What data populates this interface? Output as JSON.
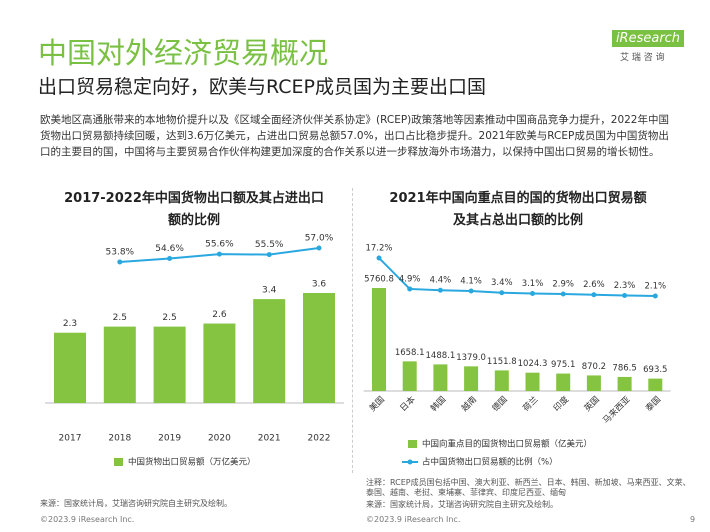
{
  "header": {
    "title": "中国对外经济贸易概况",
    "subtitle": "出口贸易稳定向好，欧美与RCEP成员国为主要出口国",
    "logo": "iResearch",
    "logo_sub": "艾 瑞 咨 询"
  },
  "paragraph": "欧美地区高通胀带来的本地物价提升以及《区域全面经济伙伴关系协定》(RCEP)政策落地等因素推动中国商品竞争力提升，2022年中国货物出口贸易额持续回暖，达到3.6万亿美元，占进出口贸易总额57.0%，出口占比稳步提升。2021年欧美与RCEP成员国为中国货物出口的主要目的国，中国将与主要贸易合作伙伴构建更加深度的合作关系以进一步释放海外市场潜力，以保持中国出口贸易的增长韧性。",
  "chart_data": [
    {
      "type": "bar",
      "title": "2017-2022年中国货物出口额及其占进出口额的比例",
      "categories": [
        "2017",
        "2018",
        "2019",
        "2020",
        "2021",
        "2022"
      ],
      "series": [
        {
          "name": "中国货物出口贸易额（万亿美元）",
          "type": "bar",
          "color": "#84c441",
          "values": [
            2.3,
            2.5,
            2.5,
            2.6,
            3.4,
            3.6
          ]
        },
        {
          "type": "line",
          "color": "#29a8e0",
          "values": [
            null,
            53.8,
            54.6,
            55.6,
            55.5,
            57.0
          ],
          "value_labels": [
            null,
            "53.8%",
            "54.6%",
            "55.6%",
            "55.5%",
            "57.0%"
          ]
        }
      ]
    },
    {
      "type": "bar",
      "title": "2021年中国向重点目的国的货物出口贸易额及其占总出口额的比例",
      "categories": [
        "美国",
        "日本",
        "韩国",
        "越南",
        "德国",
        "荷兰",
        "印度",
        "英国",
        "马来西亚",
        "泰国"
      ],
      "series": [
        {
          "name": "中国向重点目的国货物出口贸易额（亿美元）",
          "type": "bar",
          "color": "#84c441",
          "values": [
            5760.8,
            1658.1,
            1488.1,
            1379.0,
            1151.8,
            1024.3,
            975.1,
            870.2,
            786.5,
            693.5
          ],
          "value_labels": [
            "5760.8",
            "1658.1",
            "1488.1",
            "1379.0",
            "1151.8",
            "1024.3",
            "975.1",
            "870.2",
            "786.5",
            "693.5"
          ]
        },
        {
          "name": "占中国货物出口贸易额的比例（%）",
          "type": "line",
          "color": "#29a8e0",
          "values": [
            17.2,
            4.9,
            4.4,
            4.1,
            3.4,
            3.1,
            2.9,
            2.6,
            2.3,
            2.1
          ],
          "value_labels": [
            "17.2%",
            "4.9%",
            "4.4%",
            "4.1%",
            "3.4%",
            "3.1%",
            "2.9%",
            "2.6%",
            "2.3%",
            "2.1%"
          ]
        }
      ]
    }
  ],
  "footer": {
    "source_left": "来源：国家统计局，艾瑞咨询研究院自主研究及绘制。",
    "note_right": "注释：RCEP成员国包括中国、澳大利亚、新西兰、日本、韩国、新加坡、马来西亚、文莱、泰国、越南、老挝、柬埔寨、菲律宾、印度尼西亚、缅甸",
    "source_right": "来源：国家统计局，艾瑞咨询研究院自主研究及绘制。",
    "copyright_left": "©2023.9 iResearch Inc.",
    "copyright_right": "©2023.9 iResearch Inc.",
    "page": "9"
  }
}
